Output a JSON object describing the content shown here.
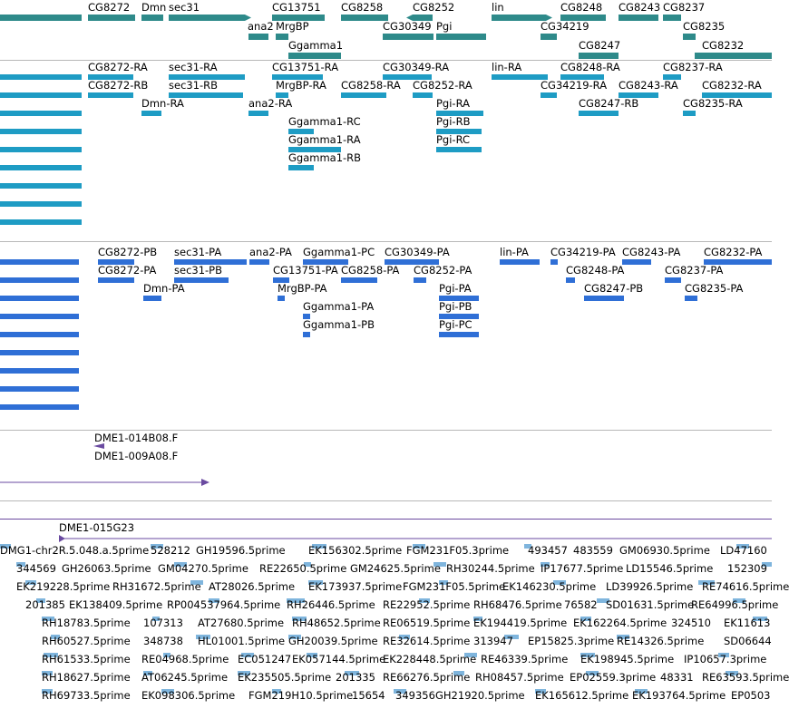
{
  "tracks": {
    "genes": {
      "color": "#2e8a8a",
      "labels": [
        "CG8272",
        "Dmn",
        "sec31",
        "CG13751",
        "CG8258",
        "CG8252",
        "lin",
        "CG8248",
        "CG8243",
        "CG8237",
        "ana2",
        "MrgBP",
        "CG30349",
        "Pgi",
        "CG34219",
        "CG8235",
        "Ggamma1",
        "CG8247",
        "CG8232"
      ]
    },
    "transcripts_ra": {
      "color": "#1e9cc4",
      "labels": [
        "CG8272-RA",
        "sec31-RA",
        "CG13751-RA",
        "CG30349-RA",
        "lin-RA",
        "CG8248-RA",
        "CG8237-RA",
        "CG8272-RB",
        "sec31-RB",
        "MrgBP-RA",
        "CG8258-RA",
        "CG8252-RA",
        "CG34219-RA",
        "CG8243-RA",
        "CG8232-RA",
        "Dmn-RA",
        "ana2-RA",
        "Pgi-RA",
        "CG8247-RB",
        "CG8235-RA",
        "Ggamma1-RC",
        "Pgi-RB",
        "Ggamma1-RA",
        "Pgi-RC",
        "Ggamma1-RB"
      ]
    },
    "proteins_pa": {
      "color": "#2f6fd6",
      "labels": [
        "CG8272-PB",
        "sec31-PA",
        "ana2-PA",
        "Ggamma1-PC",
        "CG30349-PA",
        "lin-PA",
        "CG34219-PA",
        "CG8243-PA",
        "CG8232-PA",
        "CG8272-PA",
        "sec31-PB",
        "CG13751-PA",
        "CG8258-PA",
        "CG8252-PA",
        "CG8248-PA",
        "CG8237-PA",
        "Dmn-PA",
        "MrgBP-PA",
        "Pgi-PA",
        "CG8247-PB",
        "CG8235-PA",
        "Ggamma1-PA",
        "Pgi-PB",
        "Ggamma1-PB",
        "Pgi-PC"
      ]
    },
    "bac_ends": {
      "color": "#6a4aa0",
      "labels": [
        "DME1-014B08.F",
        "DME1-009A08.F"
      ]
    },
    "bac_clone": {
      "color": "#6a4aa0",
      "labels": [
        "DME1-015G23"
      ]
    },
    "est": {
      "color": "#7fb5dd",
      "rows": [
        [
          "DMG1-chr2R.5.048.a.5prime",
          "528212",
          "GH19596.5prime",
          "EK156302.5prime",
          "FGM231F05.3prime",
          "493457",
          "483559",
          "GM06930.5prime",
          "LD47160"
        ],
        [
          "344569",
          "GH26063.5prime",
          "GM04270.5prime",
          "RE22650.5prime",
          "GM24625.5prime",
          "RH30244.5prime",
          "IP17677.5prime",
          "LD15546.5prime",
          "152309"
        ],
        [
          "EK219228.5prime",
          "RH31672.5prime",
          "AT28026.5prime",
          "EK173937.5prime",
          "FGM231F05.5prime",
          "EK146230.5prime",
          "LD39926.5prime",
          "RE74616.5prime"
        ],
        [
          "201385",
          "EK138409.5prime",
          "RP004537964.5prime",
          "RH26446.5prime",
          "RE22952.5prime",
          "RH68476.5prime",
          "76582",
          "SD01631.5prime",
          "RE64996.5prime"
        ],
        [
          "RH18783.5prime",
          "107313",
          "AT27680.5prime",
          "RH48652.5prime",
          "RE06519.5prime",
          "EK194419.5prime",
          "EK162264.5prime",
          "324510",
          "EK11613"
        ],
        [
          "RH60527.5prime",
          "348738",
          "HL01001.5prime",
          "GH20039.5prime",
          "RE32614.5prime",
          "313947",
          "EP15825.3prime",
          "RE14326.5prime",
          "SD06644"
        ],
        [
          "RH61533.5prime",
          "RE04968.5prime",
          "EC051247",
          "EK057144.5prime",
          "EK228448.5prime",
          "RE46339.5prime",
          "EK198945.5prime",
          "IP10657.3prime"
        ],
        [
          "RH18627.5prime",
          "AT06245.5prime",
          "EK235505.5prime",
          "201335",
          "RE66276.5prime",
          "RH08457.5prime",
          "EP02559.3prime",
          "48331",
          "RE63593.5prime"
        ],
        [
          "RH69733.5prime",
          "EK098306.5prime",
          "FGM219H10.5prime",
          "15654",
          "349356",
          "GH21920.5prime",
          "EK165612.5prime",
          "EK193764.5prime",
          "EP0503"
        ]
      ]
    }
  }
}
